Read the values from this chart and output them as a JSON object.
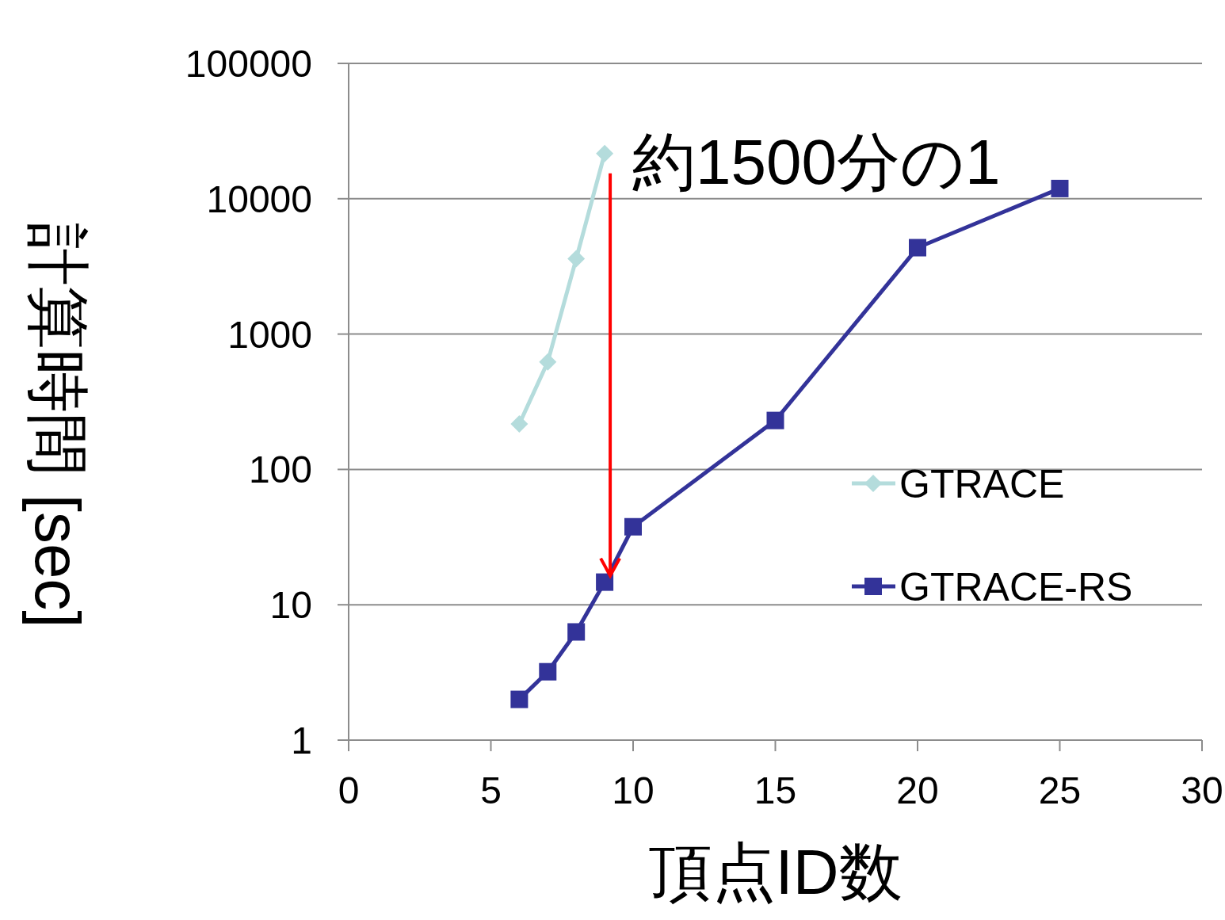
{
  "chart_data": {
    "type": "line",
    "xlabel": "頂点ID数",
    "ylabel": "計算時間 [sec]",
    "log": "y",
    "xlim": [
      0,
      30
    ],
    "xticks": [
      0,
      5,
      10,
      15,
      20,
      25,
      30
    ],
    "ylim": [
      1,
      100000
    ],
    "yticks": [
      1,
      10,
      100,
      1000,
      10000,
      100000
    ],
    "grid": "y",
    "legend": "right",
    "series": [
      {
        "name": "GTRACE",
        "color": "#b4dcdc",
        "marker": "diamond",
        "x": [
          6,
          7,
          8,
          9
        ],
        "values": [
          217,
          623,
          3600,
          21600
        ]
      },
      {
        "name": "GTRACE-RS",
        "color": "#333399",
        "marker": "square",
        "x": [
          6,
          7,
          8,
          9,
          10,
          15,
          20,
          25
        ],
        "values": [
          2.0,
          3.2,
          6.3,
          14.7,
          37.7,
          230,
          4350,
          11900
        ]
      }
    ],
    "annotations": [
      {
        "text": "約1500分の1",
        "x": 9,
        "y": 21600
      }
    ]
  }
}
